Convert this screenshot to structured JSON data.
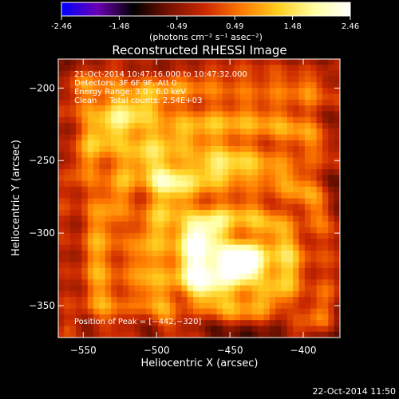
{
  "colorbar": {
    "ticks": [
      "-2.46",
      "-1.48",
      "-0.49",
      "0.49",
      "1.48",
      "2.46"
    ],
    "units": "(photons cm⁻² s⁻¹ asec⁻²)",
    "range": [
      -2.46,
      2.46
    ],
    "colormap": [
      "#0000ff",
      "#6a00b4",
      "#000000",
      "#7a1200",
      "#cc2a00",
      "#ff7a00",
      "#ffcf20",
      "#ffffa0",
      "#ffffff"
    ]
  },
  "chart_data": {
    "type": "heatmap",
    "title": "Reconstructed RHESSI Image",
    "xlabel": "Heliocentric X (arcsec)",
    "ylabel": "Heliocentric Y (arcsec)",
    "xlim": [
      -567,
      -375
    ],
    "ylim": [
      -372,
      -180
    ],
    "xticks": [
      -550,
      -500,
      -450,
      -400
    ],
    "yticks": [
      -200,
      -250,
      -300,
      -350
    ],
    "xtick_labels": [
      "−550",
      "−500",
      "−450",
      "−400"
    ],
    "ytick_labels": [
      "−200",
      "−250",
      "−300",
      "−350"
    ],
    "annotations": [
      "21-Oct-2014 10:47:16.000 to 10:47:32.000",
      "Detectors: 3F 6F 9F, Att 0",
      "Energy Range: 3.0 - 6.0 keV",
      "Clean     Total counts: 2.54E+03"
    ],
    "peak_label": "Position of Peak = [−442,−320]",
    "peak": [
      -442,
      -320
    ],
    "sources": [
      {
        "x": -442,
        "y": -320,
        "amp": 2.3,
        "sx": 16,
        "sy": 11
      },
      {
        "x": -474,
        "y": -300,
        "amp": 1.5,
        "sx": 14,
        "sy": 12
      },
      {
        "x": -495,
        "y": -262,
        "amp": 1.7,
        "sx": 8,
        "sy": 8
      },
      {
        "x": -468,
        "y": -330,
        "amp": 1.3,
        "sx": 18,
        "sy": 10
      },
      {
        "x": -520,
        "y": -225,
        "amp": 0.9,
        "sx": 20,
        "sy": 18
      },
      {
        "x": -460,
        "y": -250,
        "amp": 0.8,
        "sx": 18,
        "sy": 14
      }
    ]
  },
  "timestamp": "22-Oct-2014 11:50"
}
